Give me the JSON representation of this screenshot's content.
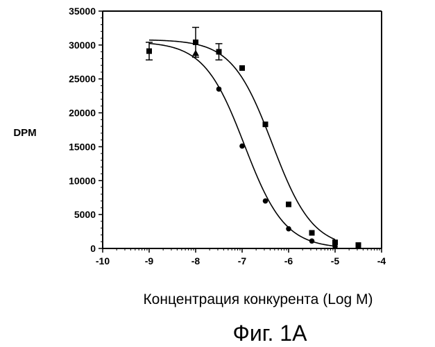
{
  "chart_data": {
    "type": "scatter",
    "title": "",
    "xlabel": "Концентрация конкурента (Log M)",
    "ylabel": "DPM",
    "caption": "Фиг. 1А",
    "xlim": [
      -10,
      -4
    ],
    "ylim": [
      0,
      35000
    ],
    "x_ticks": [
      -10,
      -9,
      -8,
      -7,
      -6,
      -5,
      -4
    ],
    "y_ticks": [
      0,
      5000,
      10000,
      15000,
      20000,
      25000,
      30000,
      35000
    ],
    "grid": false,
    "legend": "none",
    "series": [
      {
        "marker": "square",
        "points": [
          {
            "x": -9,
            "y": 29100,
            "err": 1300
          },
          {
            "x": -8,
            "y": 30400,
            "err": 2200
          },
          {
            "x": -7.5,
            "y": 29000,
            "err": 1200
          },
          {
            "x": -7,
            "y": 26600
          },
          {
            "x": -6.5,
            "y": 18300
          },
          {
            "x": -6,
            "y": 6500
          },
          {
            "x": -5.5,
            "y": 2300
          },
          {
            "x": -5,
            "y": 900
          },
          {
            "x": -4.5,
            "y": 500
          }
        ],
        "fit": {
          "top": 30800,
          "bottom": 0,
          "log_ic50": -6.35,
          "hill": 1.0
        }
      },
      {
        "marker": "triangle",
        "points": [
          {
            "x": -8,
            "y": 28800
          }
        ]
      },
      {
        "marker": "circle",
        "points": [
          {
            "x": -7.5,
            "y": 23500
          },
          {
            "x": -7,
            "y": 15100
          },
          {
            "x": -6.5,
            "y": 7000
          },
          {
            "x": -6,
            "y": 2900
          },
          {
            "x": -5.5,
            "y": 1100
          },
          {
            "x": -5,
            "y": 300
          }
        ],
        "fit": {
          "top": 30500,
          "bottom": 0,
          "log_ic50": -6.95,
          "hill": 1.0
        }
      }
    ]
  }
}
